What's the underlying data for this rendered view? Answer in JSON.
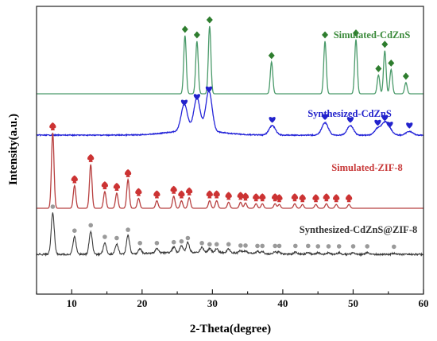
{
  "chart_data": {
    "type": "line",
    "title": "",
    "xlabel": "2-Theta(degree)",
    "ylabel": "Intensity(a.u.)",
    "xlim": [
      5,
      60
    ],
    "x_ticks": [
      10,
      20,
      30,
      40,
      50,
      60
    ],
    "y_ticks_shown": false,
    "grid": false,
    "legend": "none",
    "series": [
      {
        "name": "Simulated-CdZnS",
        "color": "#4a9a6a",
        "label_color": "#3b8a3b",
        "marker": "diamond",
        "marker_color": "#2e7d2e",
        "baseline": 0.0,
        "peaks": [
          [
            26.1,
            0.62
          ],
          [
            27.8,
            0.56
          ],
          [
            29.6,
            0.72
          ],
          [
            38.4,
            0.34
          ],
          [
            46.0,
            0.56
          ],
          [
            50.4,
            0.58
          ],
          [
            53.6,
            0.2
          ],
          [
            54.5,
            0.46
          ],
          [
            55.4,
            0.26
          ],
          [
            57.5,
            0.12
          ]
        ]
      },
      {
        "name": "Synthesized-CdZnS",
        "color": "#2424d8",
        "label_color": "#2222cc",
        "marker": "heart",
        "marker_color": "#2222cc",
        "baseline": 0.0,
        "peaks": [
          [
            26.0,
            0.28
          ],
          [
            27.8,
            0.34
          ],
          [
            29.5,
            0.42
          ],
          [
            38.5,
            0.1
          ],
          [
            46.0,
            0.13
          ],
          [
            49.6,
            0.1
          ],
          [
            53.5,
            0.07
          ],
          [
            54.5,
            0.12
          ],
          [
            55.2,
            0.05
          ],
          [
            58.0,
            0.04
          ]
        ]
      },
      {
        "name": "Simulated-ZIF-8",
        "color": "#b84040",
        "label_color": "#c83a3a",
        "marker": "spade",
        "marker_color": "#cc3333",
        "baseline": 0.0,
        "peaks": [
          [
            7.3,
            1.0
          ],
          [
            10.4,
            0.3
          ],
          [
            12.7,
            0.58
          ],
          [
            14.7,
            0.22
          ],
          [
            16.4,
            0.2
          ],
          [
            18.0,
            0.38
          ],
          [
            19.5,
            0.13
          ],
          [
            22.1,
            0.1
          ],
          [
            24.5,
            0.16
          ],
          [
            25.6,
            0.1
          ],
          [
            26.7,
            0.14
          ],
          [
            29.6,
            0.1
          ],
          [
            30.6,
            0.1
          ],
          [
            32.3,
            0.08
          ],
          [
            34.0,
            0.08
          ],
          [
            34.7,
            0.07
          ],
          [
            36.2,
            0.06
          ],
          [
            37.1,
            0.06
          ],
          [
            38.9,
            0.06
          ],
          [
            39.5,
            0.05
          ],
          [
            41.7,
            0.06
          ],
          [
            42.8,
            0.05
          ],
          [
            44.7,
            0.05
          ],
          [
            46.2,
            0.06
          ],
          [
            47.6,
            0.05
          ],
          [
            49.4,
            0.05
          ]
        ]
      },
      {
        "name": "Synthesized-CdZnS@ZIF-8",
        "color": "#3a3a3a",
        "label_color": "#333333",
        "marker": "circle",
        "marker_color": "#9a9a9a",
        "baseline": 0.0,
        "peaks": [
          [
            7.3,
            1.0
          ],
          [
            10.4,
            0.42
          ],
          [
            12.7,
            0.55
          ],
          [
            14.7,
            0.27
          ],
          [
            16.4,
            0.24
          ],
          [
            18.0,
            0.44
          ],
          [
            19.7,
            0.12
          ],
          [
            22.1,
            0.12
          ],
          [
            24.5,
            0.14
          ],
          [
            25.6,
            0.16
          ],
          [
            26.5,
            0.24
          ],
          [
            28.5,
            0.12
          ],
          [
            29.6,
            0.09
          ],
          [
            30.6,
            0.09
          ],
          [
            32.3,
            0.09
          ],
          [
            34.0,
            0.06
          ],
          [
            34.7,
            0.06
          ],
          [
            36.4,
            0.05
          ],
          [
            37.1,
            0.05
          ],
          [
            38.9,
            0.05
          ],
          [
            39.5,
            0.05
          ],
          [
            41.8,
            0.05
          ],
          [
            43.6,
            0.05
          ],
          [
            45.0,
            0.04
          ],
          [
            46.5,
            0.04
          ],
          [
            48.0,
            0.04
          ],
          [
            50.0,
            0.04
          ],
          [
            52.0,
            0.04
          ],
          [
            55.8,
            0.03
          ]
        ]
      }
    ]
  }
}
